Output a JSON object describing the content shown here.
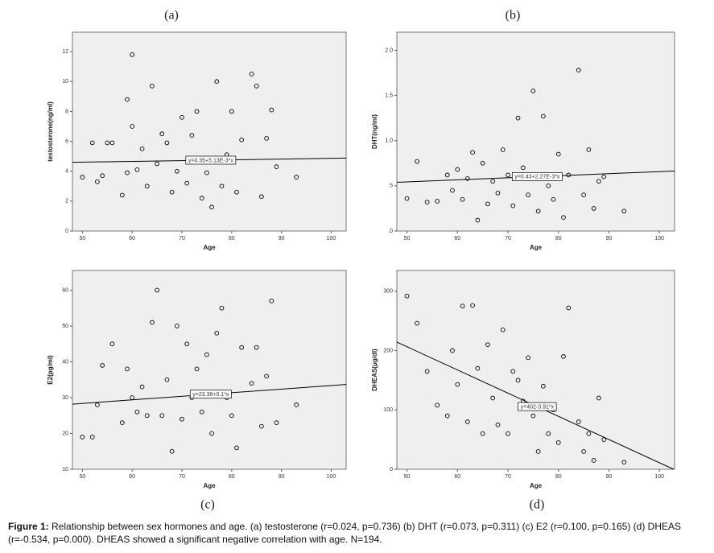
{
  "chart_data": [
    {
      "type": "scatter",
      "panel_label": "(a)",
      "x_label": "Age",
      "y_label": "testosterone(ng/ml)",
      "color": "#000000",
      "xlim": [
        48,
        103
      ],
      "xticks": [
        50,
        60,
        70,
        80,
        90,
        100
      ],
      "ylim": [
        0,
        13.3
      ],
      "yticks": [
        0,
        2,
        4,
        6,
        8,
        10,
        12
      ],
      "x": [
        50,
        52,
        53,
        54,
        55,
        56,
        58,
        59,
        59,
        60,
        60,
        61,
        62,
        63,
        64,
        65,
        66,
        67,
        68,
        69,
        70,
        71,
        72,
        73,
        74,
        75,
        76,
        77,
        78,
        79,
        80,
        81,
        82,
        84,
        85,
        86,
        87,
        88,
        89,
        93
      ],
      "y": [
        3.6,
        5.9,
        3.3,
        3.7,
        5.9,
        5.9,
        2.4,
        3.9,
        8.8,
        11.8,
        7.0,
        4.1,
        5.5,
        3.0,
        9.7,
        4.5,
        6.5,
        5.9,
        2.6,
        4.0,
        7.6,
        3.2,
        6.4,
        8.0,
        2.2,
        3.9,
        1.6,
        10.0,
        3.0,
        5.1,
        8.0,
        2.6,
        6.1,
        10.5,
        9.7,
        2.3,
        6.2,
        8.1,
        4.3,
        3.6
      ],
      "fit": {
        "intercept": 4.35,
        "slope": 0.00513,
        "label": "y=4.35+5.13E-3*x"
      }
    },
    {
      "type": "scatter",
      "panel_label": "(b)",
      "x_label": "Age",
      "y_label": "DHT(ng/ml)",
      "color": "#000000",
      "xlim": [
        48,
        103
      ],
      "xticks": [
        50,
        60,
        70,
        80,
        90,
        100
      ],
      "ylim": [
        0,
        2.2
      ],
      "yticks": [
        {
          "value": 0,
          "label": ".0"
        },
        {
          "value": 0.5,
          "label": ".5"
        },
        {
          "value": 1,
          "label": "1.0"
        },
        {
          "value": 1.5,
          "label": "1.5"
        },
        {
          "value": 2,
          "label": "2.0"
        }
      ],
      "x": [
        50,
        52,
        54,
        56,
        58,
        59,
        60,
        61,
        62,
        63,
        64,
        65,
        66,
        67,
        68,
        69,
        70,
        71,
        72,
        73,
        74,
        75,
        76,
        77,
        78,
        79,
        80,
        81,
        82,
        84,
        85,
        86,
        87,
        88,
        89,
        93
      ],
      "y": [
        0.36,
        0.77,
        0.32,
        0.33,
        0.62,
        0.45,
        0.68,
        0.35,
        0.58,
        0.87,
        0.12,
        0.75,
        0.3,
        0.55,
        0.42,
        0.9,
        0.62,
        0.28,
        1.25,
        0.7,
        0.4,
        1.55,
        0.22,
        1.27,
        0.5,
        0.35,
        0.85,
        0.15,
        0.62,
        1.78,
        0.4,
        0.9,
        0.25,
        0.55,
        0.6,
        0.22
      ],
      "fit": {
        "intercept": 0.43,
        "slope": 0.00227,
        "label": "y=0.43+2.27E-3*x"
      }
    },
    {
      "type": "scatter",
      "panel_label": "(c)",
      "x_label": "Age",
      "y_label": "E2(pg/ml)",
      "color": "#000000",
      "xlim": [
        48,
        103
      ],
      "xticks": [
        50,
        60,
        70,
        80,
        90,
        100
      ],
      "ylim": [
        10,
        65.5
      ],
      "yticks": [
        10,
        20,
        30,
        40,
        50,
        60
      ],
      "x": [
        50,
        52,
        53,
        54,
        56,
        58,
        59,
        60,
        61,
        62,
        63,
        64,
        65,
        66,
        67,
        68,
        69,
        70,
        71,
        72,
        73,
        74,
        75,
        76,
        77,
        78,
        79,
        80,
        81,
        82,
        84,
        85,
        86,
        87,
        88,
        89,
        93
      ],
      "y": [
        19,
        19,
        28,
        39,
        45,
        23,
        38,
        30,
        26,
        33,
        25,
        51,
        60,
        25,
        35,
        15,
        50,
        24,
        45,
        30,
        38,
        26,
        42,
        20,
        48,
        55,
        30,
        25,
        16,
        44,
        34,
        44,
        22,
        36,
        57,
        23,
        28
      ],
      "fit": {
        "intercept": 23.38,
        "slope": 0.1,
        "label": "y=23.38+0.1*x"
      }
    },
    {
      "type": "scatter",
      "panel_label": "(d)",
      "x_label": "Age",
      "y_label": "DHEAS(μg/dl)",
      "color": "#000000",
      "xlim": [
        48,
        103
      ],
      "xticks": [
        50,
        60,
        70,
        80,
        90,
        100
      ],
      "ylim": [
        0,
        335
      ],
      "yticks": [
        0,
        100,
        200,
        300
      ],
      "x": [
        50,
        52,
        54,
        56,
        58,
        59,
        60,
        61,
        62,
        63,
        64,
        65,
        66,
        67,
        68,
        69,
        70,
        71,
        72,
        73,
        74,
        75,
        76,
        77,
        78,
        79,
        80,
        81,
        82,
        84,
        85,
        86,
        87,
        88,
        89,
        93
      ],
      "y": [
        292,
        246,
        165,
        108,
        90,
        200,
        143,
        275,
        80,
        276,
        170,
        60,
        210,
        120,
        75,
        235,
        60,
        165,
        150,
        115,
        188,
        90,
        30,
        140,
        60,
        100,
        45,
        190,
        272,
        80,
        30,
        60,
        15,
        120,
        50,
        12
      ],
      "fit": {
        "intercept": 402,
        "slope": -3.91,
        "label": "y=402-3.91*x"
      }
    }
  ],
  "caption": {
    "label": "Figure 1:",
    "text": "Relationship between sex hormones and age. (a) testosterone (r=0.024, p=0.736) (b) DHT (r=0.073, p=0.311) (c) E2 (r=0.100, p=0.165) (d) DHEAS (r=-0.534, p=0.000). DHEAS showed a significant negative correlation with age. N=194."
  }
}
